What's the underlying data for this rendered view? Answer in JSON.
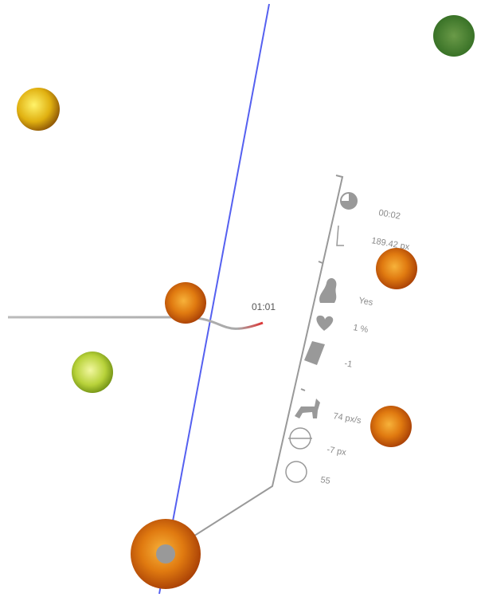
{
  "timer": "01:01",
  "stats": [
    "00:02",
    "189.42 px",
    "Yes",
    "1 %",
    "-1",
    "74 px/s",
    "-7 px",
    "55"
  ]
}
